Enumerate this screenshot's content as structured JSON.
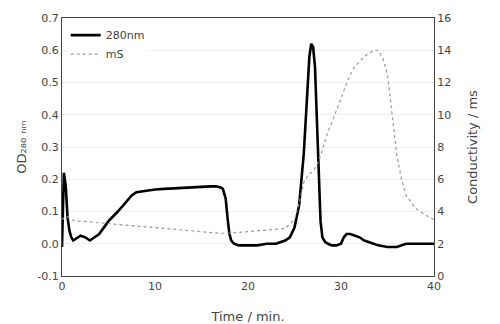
{
  "chart_data": {
    "type": "line",
    "xlabel": "Time / min.",
    "ylabel": "OD₂₈₀ ₙₘ",
    "y2label": "Conductivity / ms",
    "xlim": [
      0,
      40
    ],
    "xticks": [
      0,
      10,
      20,
      30,
      40
    ],
    "ylim": [
      -0.1,
      0.7
    ],
    "yticks": [
      -0.1,
      {
        "value": 0.0,
        "label": "0.0"
      },
      0.1,
      0.2,
      0.3,
      0.4,
      0.5,
      0.6,
      0.7
    ],
    "y2lim": [
      0,
      16
    ],
    "y2ticks": [
      0,
      2,
      4,
      6,
      8,
      10,
      12,
      14,
      16
    ],
    "grid": true,
    "legend": "upper left",
    "series": [
      {
        "name": "280nm",
        "color": "#000000",
        "line_style": "solid",
        "x": [
          0.0,
          0.2,
          0.4,
          0.6,
          0.8,
          1.0,
          1.2,
          1.5,
          2.0,
          2.5,
          3.0,
          3.5,
          4.0,
          4.5,
          5.0,
          6.0,
          7.0,
          7.5,
          8.0,
          9.0,
          10.0,
          11.0,
          12.0,
          13.0,
          14.0,
          15.0,
          16.0,
          16.5,
          17.0,
          17.3,
          17.6,
          17.8,
          18.0,
          18.2,
          18.5,
          19.0,
          19.5,
          20.0,
          21.0,
          22.0,
          23.0,
          24.0,
          24.5,
          25.0,
          25.5,
          26.0,
          26.3,
          26.6,
          26.8,
          27.0,
          27.2,
          27.4,
          27.6,
          27.8,
          28.0,
          28.3,
          28.6,
          29.0,
          29.5,
          30.0,
          30.3,
          30.6,
          31.0,
          31.5,
          32.0,
          32.5,
          33.0,
          33.5,
          34.0,
          35.0,
          36.0,
          37.0,
          38.0,
          39.0,
          40.0
        ],
        "values": [
          -0.01,
          0.22,
          0.18,
          0.08,
          0.04,
          0.02,
          0.01,
          0.015,
          0.025,
          0.02,
          0.01,
          0.02,
          0.03,
          0.05,
          0.07,
          0.1,
          0.135,
          0.15,
          0.16,
          0.165,
          0.168,
          0.17,
          0.172,
          0.174,
          0.176,
          0.178,
          0.178,
          0.178,
          0.175,
          0.17,
          0.14,
          0.08,
          0.03,
          0.01,
          0.0,
          -0.005,
          -0.005,
          -0.005,
          -0.005,
          0.0,
          0.0,
          0.01,
          0.02,
          0.05,
          0.12,
          0.28,
          0.44,
          0.58,
          0.62,
          0.61,
          0.55,
          0.38,
          0.18,
          0.07,
          0.02,
          0.005,
          0.0,
          -0.005,
          -0.005,
          0.0,
          0.02,
          0.03,
          0.03,
          0.025,
          0.02,
          0.01,
          0.005,
          0.0,
          -0.005,
          -0.01,
          -0.01,
          0.0,
          0.0,
          0.0,
          0.0
        ]
      },
      {
        "name": "mS",
        "color": "#999999",
        "line_style": "dotted",
        "axis": "y2",
        "x": [
          0.0,
          0.3,
          0.5,
          0.8,
          1.0,
          1.5,
          2.0,
          3.0,
          4.0,
          5.0,
          6.0,
          7.0,
          8.0,
          9.0,
          10.0,
          11.0,
          12.0,
          13.0,
          14.0,
          15.0,
          16.0,
          17.0,
          18.0,
          19.0,
          20.0,
          21.0,
          22.0,
          23.0,
          24.0,
          25.0,
          25.5,
          26.0,
          26.5,
          27.0,
          27.5,
          28.0,
          28.5,
          29.0,
          29.5,
          30.0,
          30.5,
          31.0,
          31.5,
          32.0,
          32.5,
          33.0,
          33.5,
          34.0,
          34.5,
          35.0,
          35.5,
          36.0,
          36.5,
          37.0,
          38.0,
          39.0,
          40.0
        ],
        "values": [
          3.5,
          3.6,
          3.7,
          3.6,
          3.5,
          3.4,
          3.4,
          3.35,
          3.3,
          3.25,
          3.2,
          3.15,
          3.1,
          3.05,
          3.0,
          2.95,
          2.9,
          2.85,
          2.8,
          2.75,
          2.7,
          2.65,
          2.65,
          2.7,
          2.75,
          2.8,
          2.85,
          2.9,
          2.95,
          3.5,
          4.5,
          5.8,
          6.3,
          6.5,
          7.0,
          7.8,
          8.8,
          9.5,
          10.2,
          11.0,
          11.8,
          12.5,
          13.0,
          13.3,
          13.6,
          13.8,
          14.0,
          14.0,
          13.5,
          12.5,
          10.0,
          7.5,
          6.0,
          5.0,
          4.2,
          3.8,
          3.5
        ]
      }
    ]
  }
}
